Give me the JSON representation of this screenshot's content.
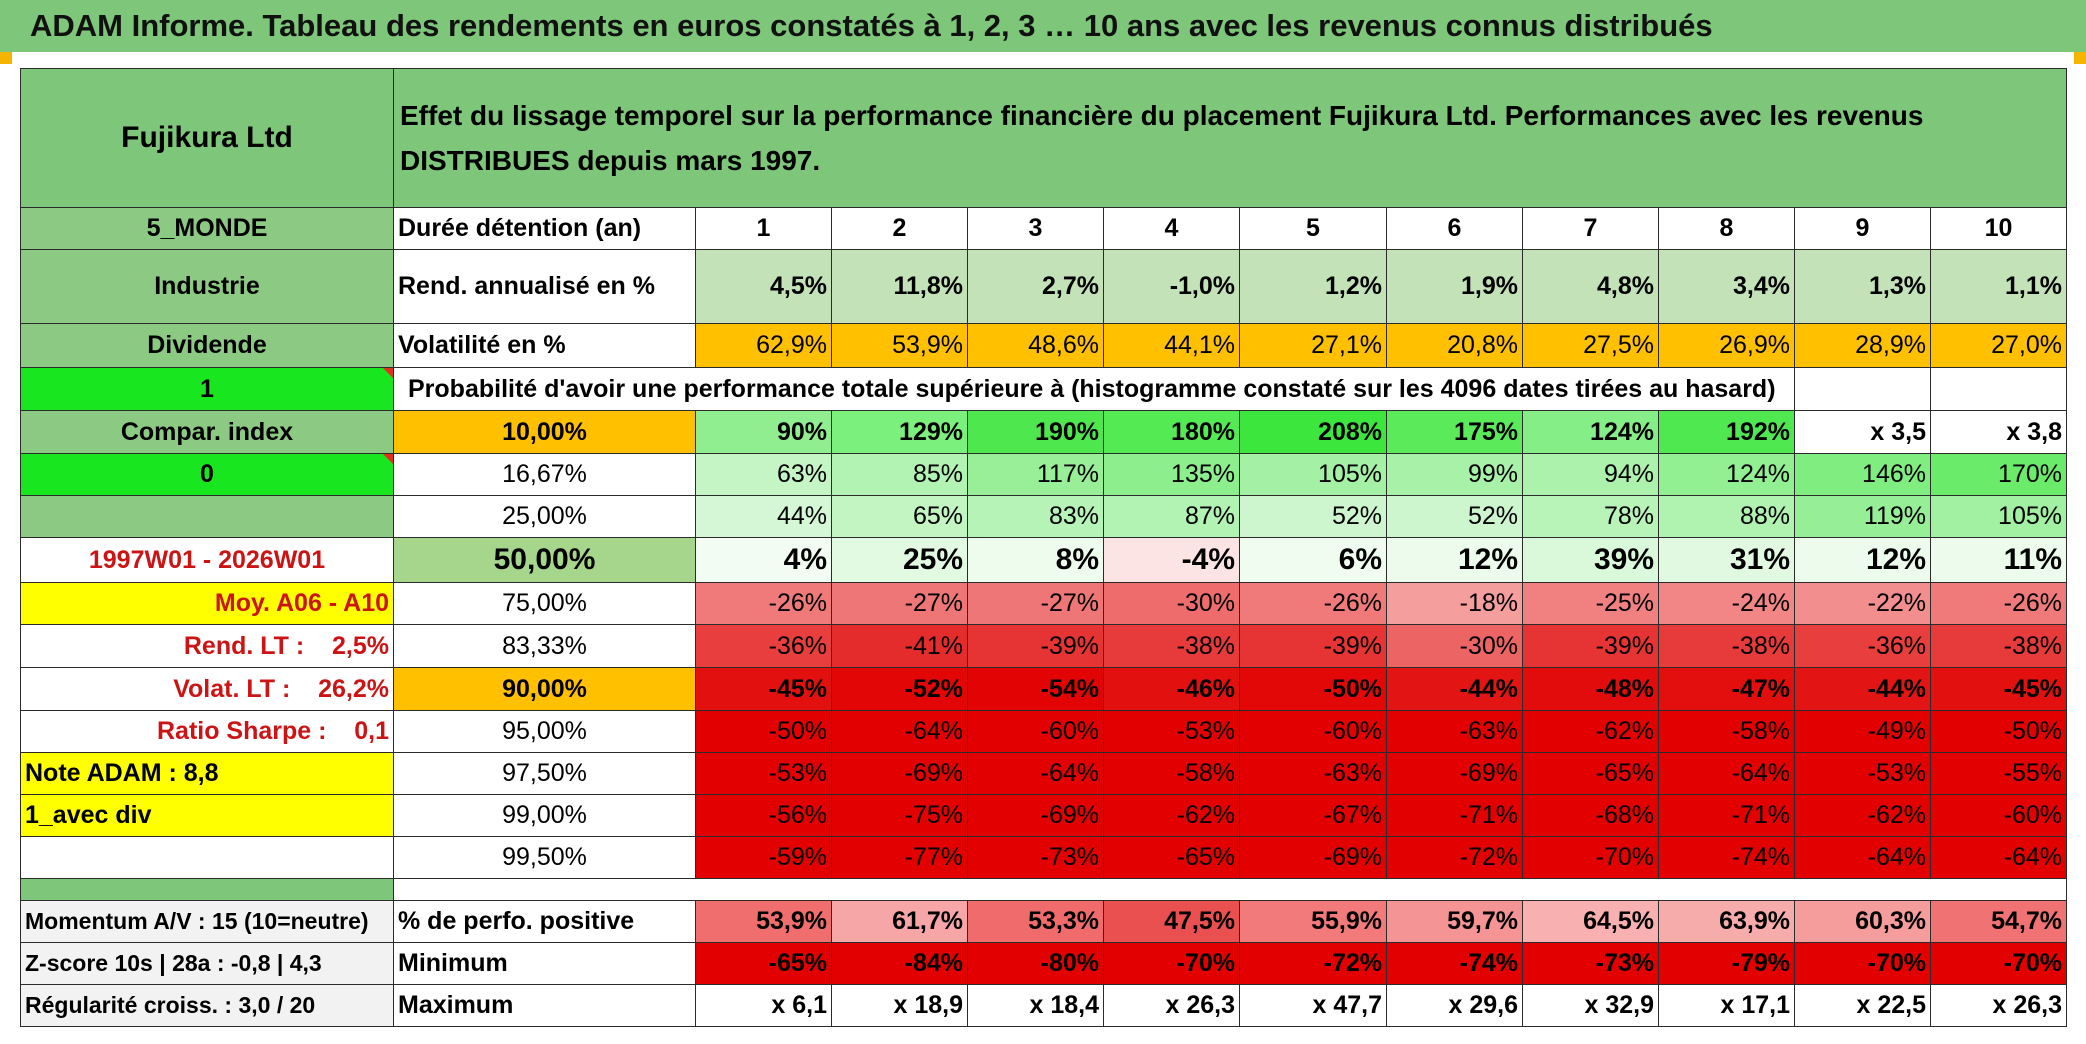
{
  "title": "ADAM Informe. Tableau des rendements en euros constatés à 1, 2, 3 … 10 ans avec les revenus connus distribués",
  "header": {
    "company": "Fujikura Ltd",
    "description": "Effet du lissage temporel sur la performance financière du placement Fujikura Ltd. Performances avec les revenus DISTRIBUES depuis mars 1997."
  },
  "left": {
    "zone": "5_MONDE",
    "sector": "Industrie",
    "dividend": "Dividende",
    "compar_flag": "1",
    "compar_index": "Compar. index",
    "index_flag": "0",
    "period": "1997W01 - 2026W01",
    "moy": "Moy. A06 - A10",
    "rend_lt": "Rend. LT :    2,5%",
    "volat_lt": "Volat. LT :    26,2%",
    "sharpe": "Ratio Sharpe :    0,1",
    "note": "Note ADAM : 8,8",
    "mode": "1_avec div",
    "momentum": "Momentum A/V : 15 (10=neutre)",
    "zscore": "Z-score 10s | 28a : -0,8 | 4,3",
    "regularite": "Régularité croiss. : 3,0 / 20"
  },
  "labels": {
    "duree": "Durée détention (an)",
    "rend": "Rend. annualisé en %",
    "vol": "Volatilité en %",
    "proba": "Probabilité d'avoir une performance totale supérieure à (histogramme constaté sur les 4096 dates tirées au hasard)",
    "positive": "% de perfo. positive",
    "minimum": "Minimum",
    "maximum": "Maximum"
  },
  "years": [
    "1",
    "2",
    "3",
    "4",
    "5",
    "6",
    "7",
    "8",
    "9",
    "10"
  ],
  "rend": [
    "4,5%",
    "11,8%",
    "2,7%",
    "-1,0%",
    "1,2%",
    "1,9%",
    "4,8%",
    "3,4%",
    "1,3%",
    "1,1%"
  ],
  "vol": [
    "62,9%",
    "53,9%",
    "48,6%",
    "44,1%",
    "27,1%",
    "20,8%",
    "27,5%",
    "26,9%",
    "28,9%",
    "27,0%"
  ],
  "prob_rows": [
    {
      "p": "10,00%",
      "v": [
        "90%",
        "129%",
        "190%",
        "180%",
        "208%",
        "175%",
        "124%",
        "192%",
        "x 3,5",
        "x 3,8"
      ],
      "c": [
        "#90ee90",
        "#7cf07c",
        "#4ee84e",
        "#54ea54",
        "#3ce63c",
        "#5aea5a",
        "#86ee86",
        "#50e850",
        "#ffffff",
        "#ffffff"
      ]
    },
    {
      "p": "16,67%",
      "v": [
        "63%",
        "85%",
        "117%",
        "135%",
        "105%",
        "99%",
        "94%",
        "124%",
        "146%",
        "170%"
      ],
      "c": [
        "#c5f5c5",
        "#b2f2b2",
        "#98ef98",
        "#8cee8c",
        "#a4f0a4",
        "#a8f1a8",
        "#acf1ac",
        "#92ef92",
        "#80ed80",
        "#6aeb6a"
      ]
    },
    {
      "p": "25,00%",
      "v": [
        "44%",
        "65%",
        "83%",
        "87%",
        "52%",
        "52%",
        "78%",
        "88%",
        "119%",
        "105%"
      ],
      "c": [
        "#d6f7d6",
        "#c3f5c3",
        "#b6f3b6",
        "#b2f2b2",
        "#cef6ce",
        "#cef6ce",
        "#b8f3b8",
        "#b0f2b0",
        "#96ef96",
        "#a2f0a2"
      ]
    },
    {
      "p": "50,00%",
      "v": [
        "4%",
        "25%",
        "8%",
        "-4%",
        "6%",
        "12%",
        "39%",
        "31%",
        "12%",
        "11%"
      ],
      "c": [
        "#f2fcf2",
        "#e2fae2",
        "#eefcee",
        "#fde4e4",
        "#f0fcf0",
        "#ecfbec",
        "#daf8da",
        "#e0f9e0",
        "#ecfbec",
        "#ecfbec"
      ]
    },
    {
      "p": "75,00%",
      "v": [
        "-26%",
        "-27%",
        "-27%",
        "-30%",
        "-26%",
        "-18%",
        "-25%",
        "-24%",
        "-22%",
        "-26%"
      ],
      "c": [
        "#f07a7a",
        "#ef7676",
        "#ef7676",
        "#ee6c6c",
        "#f07a7a",
        "#f59e9e",
        "#f18080",
        "#f28686",
        "#f38e8e",
        "#f07a7a"
      ]
    },
    {
      "p": "83,33%",
      "v": [
        "-36%",
        "-41%",
        "-39%",
        "-38%",
        "-39%",
        "-30%",
        "-39%",
        "-38%",
        "-36%",
        "-38%"
      ],
      "c": [
        "#e83e3e",
        "#e52c2c",
        "#e63434",
        "#e73a3a",
        "#e63434",
        "#ed6464",
        "#e63434",
        "#e73a3a",
        "#e83e3e",
        "#e73a3a"
      ]
    },
    {
      "p": "90,00%",
      "v": [
        "-45%",
        "-52%",
        "-54%",
        "-46%",
        "-50%",
        "-44%",
        "-48%",
        "-47%",
        "-44%",
        "-45%"
      ],
      "c": [
        "#e31010",
        "#e20606",
        "#e20404",
        "#e31010",
        "#e20808",
        "#e31414",
        "#e30c0c",
        "#e30e0e",
        "#e31414",
        "#e31010"
      ]
    },
    {
      "p": "95,00%",
      "v": [
        "-50%",
        "-64%",
        "-60%",
        "-53%",
        "-60%",
        "-63%",
        "-62%",
        "-58%",
        "-49%",
        "-50%"
      ],
      "c": [
        "#e20000",
        "#e20000",
        "#e20000",
        "#e20000",
        "#e20000",
        "#e20000",
        "#e20000",
        "#e20000",
        "#e20000",
        "#e20000"
      ]
    },
    {
      "p": "97,50%",
      "v": [
        "-53%",
        "-69%",
        "-64%",
        "-58%",
        "-63%",
        "-69%",
        "-65%",
        "-64%",
        "-53%",
        "-55%"
      ],
      "c": [
        "#e20000",
        "#e20000",
        "#e20000",
        "#e20000",
        "#e20000",
        "#e20000",
        "#e20000",
        "#e20000",
        "#e20000",
        "#e20000"
      ]
    },
    {
      "p": "99,00%",
      "v": [
        "-56%",
        "-75%",
        "-69%",
        "-62%",
        "-67%",
        "-71%",
        "-68%",
        "-71%",
        "-62%",
        "-60%"
      ],
      "c": [
        "#e20000",
        "#e20000",
        "#e20000",
        "#e20000",
        "#e20000",
        "#e20000",
        "#e20000",
        "#e20000",
        "#e20000",
        "#e20000"
      ]
    },
    {
      "p": "99,50%",
      "v": [
        "-59%",
        "-77%",
        "-73%",
        "-65%",
        "-69%",
        "-72%",
        "-70%",
        "-74%",
        "-64%",
        "-64%"
      ],
      "c": [
        "#e20000",
        "#e20000",
        "#e20000",
        "#e20000",
        "#e20000",
        "#e20000",
        "#e20000",
        "#e20000",
        "#e20000",
        "#e20000"
      ]
    }
  ],
  "positive": [
    "53,9%",
    "61,7%",
    "53,3%",
    "47,5%",
    "55,9%",
    "59,7%",
    "64,5%",
    "63,9%",
    "60,3%",
    "54,7%"
  ],
  "positive_colors": [
    "#f06e6e",
    "#f6a6a6",
    "#f06c6c",
    "#ea5050",
    "#f27a7a",
    "#f49494",
    "#f8b0b0",
    "#f7acac",
    "#f59c9c",
    "#f07272"
  ],
  "minimum": [
    "-65%",
    "-84%",
    "-80%",
    "-70%",
    "-72%",
    "-74%",
    "-73%",
    "-79%",
    "-70%",
    "-70%"
  ],
  "maximum": [
    "x 6,1",
    "x 18,9",
    "x 18,4",
    "x 26,3",
    "x 47,7",
    "x 29,6",
    "x 32,9",
    "x 17,1",
    "x 22,5",
    "x 26,3"
  ]
}
